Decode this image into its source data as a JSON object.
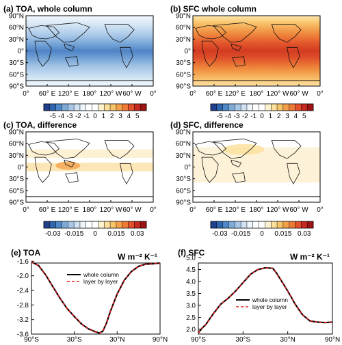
{
  "panels": {
    "a": {
      "title": "(a) TOA, whole column"
    },
    "b": {
      "title": "(b) SFC whole column"
    },
    "c": {
      "title": "(c) TOA, difference"
    },
    "d": {
      "title": "(d) SFC, difference"
    },
    "e": {
      "title": "(e) TOA",
      "units": "W m⁻² K⁻¹"
    },
    "f": {
      "title": "(f) SFC",
      "units": "W m⁻² K⁻¹"
    }
  },
  "map_lat_ticks": [
    "90°N",
    "60°N",
    "30°N",
    "0°",
    "30°S",
    "60°S",
    "90°S"
  ],
  "map_lon_ticks": [
    "0°",
    "60° E",
    "120° E",
    "180°",
    "120° W",
    "60° W",
    "0°"
  ],
  "colorbars": {
    "top": [
      "-5",
      "-4",
      "-3",
      "-2",
      "-1",
      "0",
      "1",
      "2",
      "3",
      "4",
      "5"
    ],
    "bottom": [
      "-0.03",
      "-0.015",
      "0",
      "0.015",
      "0.03"
    ],
    "colors": [
      "#1f3f8f",
      "#2f66b0",
      "#4f88c8",
      "#7eaad8",
      "#a9c8e8",
      "#d0e2f3",
      "#eef5fb",
      "#ffffff",
      "#ffffff",
      "#fdf2cf",
      "#fbdf9a",
      "#f8c46a",
      "#f4a04a",
      "#ee7a35",
      "#e3512a",
      "#c62a20",
      "#9e1414"
    ]
  },
  "legend": {
    "solid": "whole column",
    "dashed": "layer by layer"
  },
  "colors": {
    "solid": "#000000",
    "dashed": "#e21a1a"
  },
  "chart_data": [
    {
      "type": "line",
      "title": "(e) TOA",
      "ylabel": "W m⁻² K⁻¹",
      "xlim": [
        -90,
        90
      ],
      "ylim": [
        -3.6,
        -1.5
      ],
      "xticks": [
        "90°S",
        "30°S",
        "30°N",
        "90°N"
      ],
      "yticks": [
        "-1.6",
        "-2.0",
        "-2.4",
        "-2.8",
        "-3.2",
        "-3.6"
      ],
      "legend_position": "top-center",
      "x": [
        -90,
        -80,
        -70,
        -60,
        -50,
        -40,
        -30,
        -20,
        -10,
        0,
        5,
        10,
        15,
        20,
        30,
        40,
        50,
        60,
        70,
        80,
        90
      ],
      "series": [
        {
          "name": "whole column",
          "values": [
            -1.62,
            -1.72,
            -1.98,
            -2.3,
            -2.62,
            -2.9,
            -3.12,
            -3.32,
            -3.46,
            -3.54,
            -3.57,
            -3.52,
            -3.3,
            -3.0,
            -2.5,
            -2.12,
            -1.88,
            -1.74,
            -1.68,
            -1.67,
            -1.65
          ]
        },
        {
          "name": "layer by layer",
          "values": [
            -1.62,
            -1.72,
            -1.98,
            -2.3,
            -2.62,
            -2.9,
            -3.12,
            -3.32,
            -3.46,
            -3.54,
            -3.57,
            -3.52,
            -3.3,
            -3.0,
            -2.5,
            -2.12,
            -1.88,
            -1.74,
            -1.68,
            -1.67,
            -1.65
          ]
        }
      ]
    },
    {
      "type": "line",
      "title": "(f) SFC",
      "ylabel": "W m⁻² K⁻¹",
      "xlim": [
        -90,
        90
      ],
      "ylim": [
        1.8,
        5.0
      ],
      "xticks": [
        "90°S",
        "30°S",
        "30°N",
        "90°N"
      ],
      "yticks": [
        "5.0",
        "4.5",
        "4.0",
        "3.5",
        "3.0",
        "2.5",
        "2.0"
      ],
      "legend_position": "center-right",
      "x": [
        -90,
        -85,
        -80,
        -70,
        -60,
        -50,
        -40,
        -30,
        -20,
        -10,
        0,
        10,
        15,
        20,
        30,
        40,
        50,
        60,
        70,
        80,
        90
      ],
      "series": [
        {
          "name": "whole column",
          "values": [
            1.85,
            2.05,
            2.2,
            2.65,
            3.05,
            3.3,
            3.6,
            3.95,
            4.3,
            4.5,
            4.57,
            4.55,
            4.35,
            4.1,
            3.6,
            3.05,
            2.6,
            2.35,
            2.3,
            2.28,
            2.3
          ]
        },
        {
          "name": "layer by layer",
          "values": [
            1.85,
            2.05,
            2.2,
            2.65,
            3.05,
            3.3,
            3.6,
            3.95,
            4.3,
            4.5,
            4.57,
            4.55,
            4.35,
            4.1,
            3.6,
            3.05,
            2.6,
            2.35,
            2.3,
            2.28,
            2.3
          ]
        }
      ]
    }
  ]
}
